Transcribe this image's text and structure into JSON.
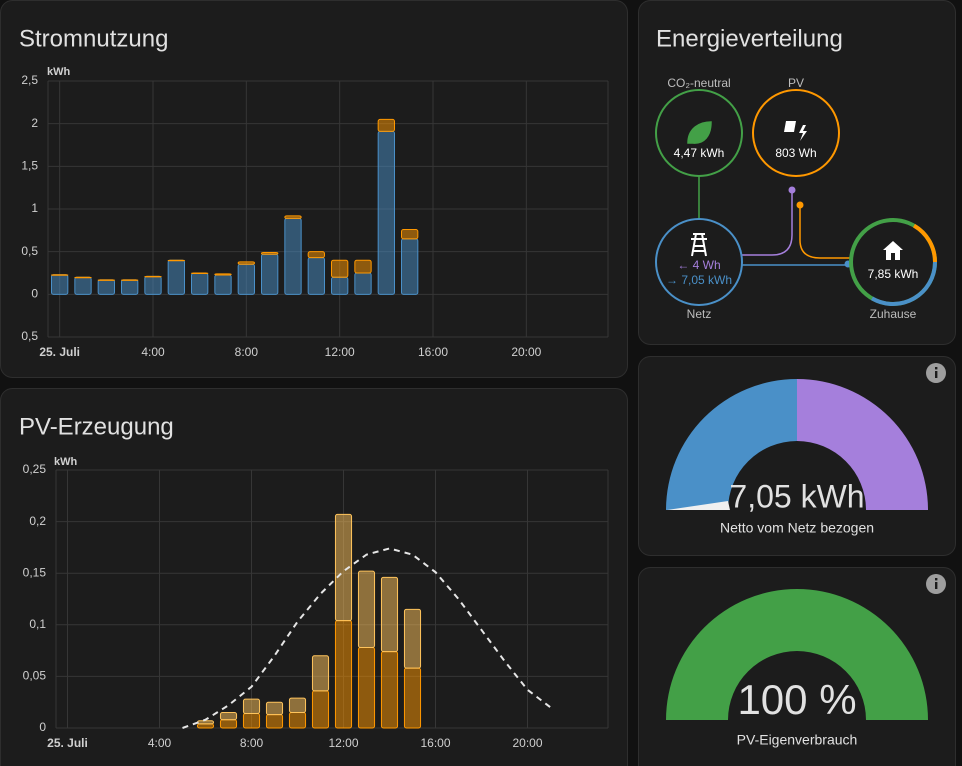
{
  "chart_data": [
    {
      "type": "bar",
      "title": "Stromnutzung",
      "y_label": "kWh",
      "stacked": true,
      "x": [
        0,
        1,
        2,
        3,
        4,
        5,
        6,
        7,
        8,
        9,
        10,
        11,
        12,
        13,
        14,
        15
      ],
      "xlim": [
        -0.5,
        23.5
      ],
      "xticks": [
        {
          "value": 0,
          "label": "25. Juli"
        },
        {
          "value": 4,
          "label": "4:00"
        },
        {
          "value": 8,
          "label": "8:00"
        },
        {
          "value": 12,
          "label": "12:00"
        },
        {
          "value": 16,
          "label": "16:00"
        },
        {
          "value": 20,
          "label": "20:00"
        }
      ],
      "ylim": [
        -0.5,
        2.5
      ],
      "yticks": [
        {
          "value": 2.5,
          "label": "2,5"
        },
        2,
        {
          "value": 1.5,
          "label": "1,5"
        },
        1,
        {
          "value": 0.5,
          "label": "0,5"
        },
        0,
        {
          "value": -0.5,
          "label": "0,5"
        }
      ],
      "grid": true,
      "series": [
        {
          "color": "#4a90c8",
          "values": [
            0.23,
            0.2,
            0.17,
            0.17,
            0.21,
            0.4,
            0.245,
            0.227,
            0.353,
            0.47,
            0.89,
            0.43,
            0.2,
            0.25,
            1.91,
            0.65
          ]
        },
        {
          "color": "#ff9800",
          "values": [
            0,
            0,
            0,
            0,
            0,
            0,
            0.005,
            0.013,
            0.027,
            0.02,
            0.03,
            0.07,
            0.2,
            0.15,
            0.14,
            0.11
          ]
        }
      ]
    },
    {
      "type": "bar",
      "title": "PV-Erzeugung",
      "y_label": "kWh",
      "stacked": true,
      "x": [
        6,
        7,
        8,
        9,
        10,
        11,
        12,
        13,
        14,
        15
      ],
      "xlim": [
        -0.5,
        23.5
      ],
      "xticks": [
        {
          "value": 0,
          "label": "25. Juli"
        },
        {
          "value": 4,
          "label": "4:00"
        },
        {
          "value": 8,
          "label": "8:00"
        },
        {
          "value": 12,
          "label": "12:00"
        },
        {
          "value": 16,
          "label": "16:00"
        },
        {
          "value": 20,
          "label": "20:00"
        }
      ],
      "ylim": [
        0,
        0.25
      ],
      "yticks": [
        {
          "value": 0.25,
          "label": "0,25"
        },
        {
          "value": 0.2,
          "label": "0,2"
        },
        {
          "value": 0.15,
          "label": "0,15"
        },
        {
          "value": 0.1,
          "label": "0,1"
        },
        {
          "value": 0.05,
          "label": "0,05"
        },
        0
      ],
      "grid": true,
      "series": [
        {
          "color": "#ff9800",
          "values": [
            0.004,
            0.008,
            0.014,
            0.013,
            0.015,
            0.036,
            0.104,
            0.078,
            0.074,
            0.058
          ]
        },
        {
          "color": "#ffc45c",
          "values": [
            0.003,
            0.007,
            0.014,
            0.012,
            0.014,
            0.034,
            0.103,
            0.074,
            0.072,
            0.057
          ]
        },
        {
          "type": "line",
          "dashed": true,
          "color": "#e6e6e6",
          "x": [
            5,
            6,
            7,
            8,
            9,
            10,
            11,
            12,
            13,
            14,
            15,
            16,
            17,
            18,
            19,
            20,
            21
          ],
          "values": [
            0,
            0.008,
            0.022,
            0.04,
            0.07,
            0.103,
            0.13,
            0.152,
            0.168,
            0.174,
            0.168,
            0.151,
            0.125,
            0.095,
            0.065,
            0.037,
            0.02
          ]
        }
      ]
    }
  ],
  "energy_distribution": {
    "title": "Energieverteilung",
    "co2": {
      "label": "CO₂-neutral",
      "value": "4,47 kWh"
    },
    "pv": {
      "label": "PV",
      "value": "803 Wh"
    },
    "grid": {
      "label": "Netz",
      "returned": "← 4 Wh",
      "consumed": "→ 7,05 kWh"
    },
    "home": {
      "label": "Zuhause",
      "value": "7,85 kWh"
    }
  },
  "gauges": [
    {
      "value": "7,05 kWh",
      "name": "Netto vom Netz bezogen"
    },
    {
      "value": "100 %",
      "name": "PV-Eigenverbrauch"
    }
  ]
}
